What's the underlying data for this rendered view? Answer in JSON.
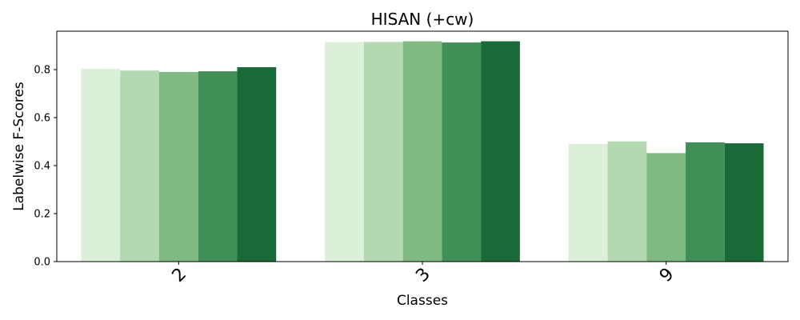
{
  "chart_data": {
    "type": "bar",
    "title": "HISAN (+cw)",
    "xlabel": "Classes",
    "ylabel": "Labelwise F-Scores",
    "categories": [
      "2",
      "3",
      "9"
    ],
    "ylim": [
      0,
      0.96
    ],
    "yticks": [
      "0.0",
      "0.2",
      "0.4",
      "0.6",
      "0.8"
    ],
    "grid": false,
    "legend": "none",
    "series": [
      {
        "values": [
          0.803,
          0.915,
          0.49
        ],
        "color": "#dcefd9"
      },
      {
        "values": [
          0.796,
          0.915,
          0.501
        ],
        "color": "#b3d9b0"
      },
      {
        "values": [
          0.79,
          0.918,
          0.452
        ],
        "color": "#7fbb80"
      },
      {
        "values": [
          0.793,
          0.913,
          0.497
        ],
        "color": "#3f8f56"
      },
      {
        "values": [
          0.81,
          0.918,
          0.493
        ],
        "color": "#186b36"
      }
    ]
  }
}
